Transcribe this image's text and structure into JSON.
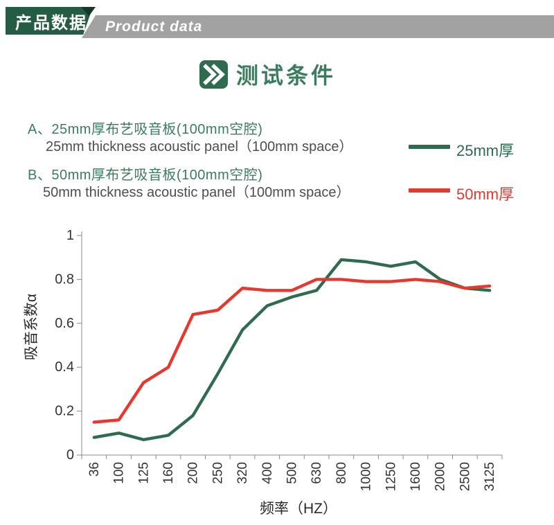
{
  "header": {
    "title_zh": "产品数据",
    "title_en": "Product data"
  },
  "section": {
    "title": "测试条件"
  },
  "items": [
    {
      "zh": "A、25mm厚布艺吸音板(100mm空腔)",
      "en": "25mm thickness acoustic panel（100mm space）"
    },
    {
      "zh": "B、50mm厚布艺吸音板(100mm空腔)",
      "en": "50mm thickness acoustic panel（100mm space）"
    }
  ],
  "legend": [
    {
      "label": "25mm厚",
      "color": "#2e6b4f"
    },
    {
      "label": "50mm厚",
      "color": "#e8382d"
    }
  ],
  "colors": {
    "brand_green": "#2e6b4f",
    "text_green": "#3a7d5e",
    "accent_red": "#e8382d",
    "header_green": "#245c45",
    "header_dark_green": "#143726",
    "ribbon_gray": "#a2a2a2"
  },
  "chart_data": {
    "type": "line",
    "categories": [
      "36",
      "100",
      "125",
      "160",
      "200",
      "250",
      "320",
      "400",
      "500",
      "630",
      "800",
      "1000",
      "1250",
      "1600",
      "2000",
      "2500",
      "3125"
    ],
    "series": [
      {
        "name": "25mm厚",
        "color": "#2e6b4f",
        "values": [
          0.08,
          0.1,
          0.07,
          0.09,
          0.18,
          0.37,
          0.57,
          0.68,
          0.72,
          0.75,
          0.89,
          0.88,
          0.86,
          0.88,
          0.8,
          0.76,
          0.75
        ]
      },
      {
        "name": "50mm厚",
        "color": "#e8382d",
        "values": [
          0.15,
          0.16,
          0.33,
          0.4,
          0.64,
          0.66,
          0.76,
          0.75,
          0.75,
          0.8,
          0.8,
          0.79,
          0.79,
          0.8,
          0.79,
          0.76,
          0.77
        ]
      }
    ],
    "title": "",
    "xlabel": "频率（HZ）",
    "ylabel": "吸音系数α",
    "ylim": [
      0,
      1
    ],
    "yticks": [
      "0",
      "0.2",
      "0.4",
      "0.6",
      "0.8",
      "1"
    ],
    "grid": false,
    "legend_position": "top-right"
  }
}
